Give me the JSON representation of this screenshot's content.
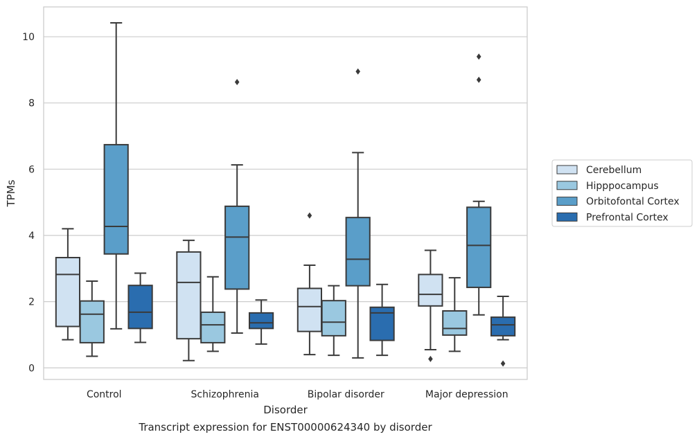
{
  "chart_data": {
    "type": "box",
    "title": "Transcript expression for ENST00000624340 by disorder",
    "xlabel": "Disorder",
    "ylabel": "TPMs",
    "ylim": [
      -0.35,
      10.9
    ],
    "yticks": [
      0,
      2,
      4,
      6,
      8,
      10
    ],
    "grid": true,
    "legend_position": "right",
    "categories": [
      "Control",
      "Schizophrenia",
      "Bipolar disorder",
      "Major depression"
    ],
    "series": [
      {
        "name": "Cerebellum",
        "color": "#d0e2f2",
        "boxes": [
          {
            "whislo": 0.85,
            "q1": 1.25,
            "med": 2.82,
            "q3": 3.33,
            "whishi": 4.2,
            "fliers": []
          },
          {
            "whislo": 0.22,
            "q1": 0.88,
            "med": 2.58,
            "q3": 3.5,
            "whishi": 3.85,
            "fliers": []
          },
          {
            "whislo": 0.4,
            "q1": 1.1,
            "med": 1.85,
            "q3": 2.4,
            "whishi": 3.1,
            "fliers": [
              4.6
            ]
          },
          {
            "whislo": 0.55,
            "q1": 1.87,
            "med": 2.22,
            "q3": 2.82,
            "whishi": 3.55,
            "fliers": [
              0.27
            ]
          }
        ]
      },
      {
        "name": "Hipppocampus",
        "color": "#9ac8e0",
        "boxes": [
          {
            "whislo": 0.35,
            "q1": 0.76,
            "med": 1.62,
            "q3": 2.02,
            "whishi": 2.62,
            "fliers": []
          },
          {
            "whislo": 0.5,
            "q1": 0.76,
            "med": 1.3,
            "q3": 1.68,
            "whishi": 2.75,
            "fliers": []
          },
          {
            "whislo": 0.38,
            "q1": 0.97,
            "med": 1.38,
            "q3": 2.03,
            "whishi": 2.48,
            "fliers": []
          },
          {
            "whislo": 0.5,
            "q1": 0.99,
            "med": 1.19,
            "q3": 1.72,
            "whishi": 2.72,
            "fliers": []
          }
        ]
      },
      {
        "name": "Orbitofontal Cortex",
        "color": "#5a9ec9",
        "boxes": [
          {
            "whislo": 1.18,
            "q1": 3.44,
            "med": 4.27,
            "q3": 6.74,
            "whishi": 10.42,
            "fliers": []
          },
          {
            "whislo": 1.05,
            "q1": 2.38,
            "med": 3.95,
            "q3": 4.88,
            "whishi": 6.13,
            "fliers": [
              8.63
            ]
          },
          {
            "whislo": 0.3,
            "q1": 2.48,
            "med": 3.28,
            "q3": 4.54,
            "whishi": 6.5,
            "fliers": [
              8.95
            ]
          },
          {
            "whislo": 1.6,
            "q1": 2.43,
            "med": 3.7,
            "q3": 4.85,
            "whishi": 5.03,
            "fliers": [
              8.7,
              9.4
            ]
          }
        ]
      },
      {
        "name": "Prefrontal Cortex",
        "color": "#2a6daf",
        "boxes": [
          {
            "whislo": 0.77,
            "q1": 1.19,
            "med": 1.68,
            "q3": 2.49,
            "whishi": 2.86,
            "fliers": []
          },
          {
            "whislo": 0.72,
            "q1": 1.19,
            "med": 1.36,
            "q3": 1.66,
            "whishi": 2.05,
            "fliers": []
          },
          {
            "whislo": 0.38,
            "q1": 0.83,
            "med": 1.66,
            "q3": 1.83,
            "whishi": 2.52,
            "fliers": []
          },
          {
            "whislo": 0.85,
            "q1": 0.97,
            "med": 1.3,
            "q3": 1.53,
            "whishi": 2.16,
            "fliers": [
              0.13
            ]
          }
        ]
      }
    ]
  }
}
